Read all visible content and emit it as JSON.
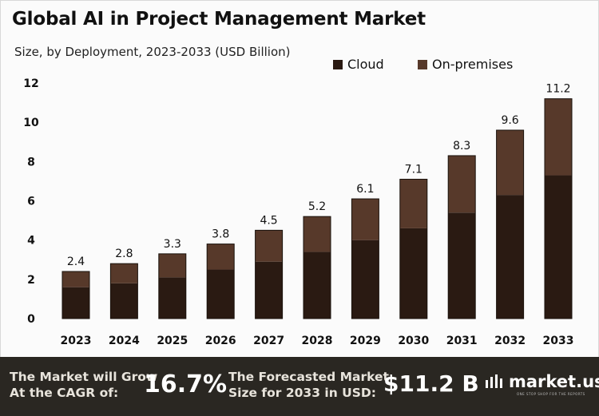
{
  "header": {
    "title": "Global AI in Project Management Market",
    "subtitle": "Size, by Deployment, 2023-2033 (USD Billion)"
  },
  "legend": {
    "cloud_label": "Cloud",
    "onprem_label": "On-premises"
  },
  "colors": {
    "cloud": "#2a1a12",
    "onprem": "#57392a",
    "footer_bg": "#2a2722"
  },
  "chart_data": {
    "type": "bar",
    "stacked": true,
    "categories": [
      "2023",
      "2024",
      "2025",
      "2026",
      "2027",
      "2028",
      "2029",
      "2030",
      "2031",
      "2032",
      "2033"
    ],
    "series": [
      {
        "name": "Cloud",
        "values": [
          1.6,
          1.8,
          2.1,
          2.5,
          2.9,
          3.4,
          4.0,
          4.6,
          5.4,
          6.3,
          7.3
        ]
      },
      {
        "name": "On-premises",
        "values": [
          0.8,
          1.0,
          1.2,
          1.3,
          1.6,
          1.8,
          2.1,
          2.5,
          2.9,
          3.3,
          3.9
        ]
      }
    ],
    "totals": [
      "2.4",
      "2.8",
      "3.3",
      "3.8",
      "4.5",
      "5.2",
      "6.1",
      "7.1",
      "8.3",
      "9.6",
      "11.2"
    ],
    "total_values": [
      2.4,
      2.8,
      3.3,
      3.8,
      4.5,
      5.2,
      6.1,
      7.1,
      8.3,
      9.6,
      11.2
    ],
    "ylim": [
      0,
      12
    ],
    "yticks": [
      0,
      2,
      4,
      6,
      8,
      10,
      12
    ],
    "ytick_labels": [
      "0",
      "2",
      "4",
      "6",
      "8",
      "10",
      "12"
    ],
    "grid": false,
    "legend_position": "top-right"
  },
  "footer": {
    "cagr_text_line1": "The Market will Grow",
    "cagr_text_line2": "At the CAGR of:",
    "cagr_value": "16.7%",
    "forecast_text_line1": "The Forecasted Market",
    "forecast_text_line2": "Size for 2033 in USD:",
    "forecast_value": "$11.2 B",
    "brand_name": "market.us",
    "brand_tagline": "ONE STOP SHOP FOR THE REPORTS"
  }
}
